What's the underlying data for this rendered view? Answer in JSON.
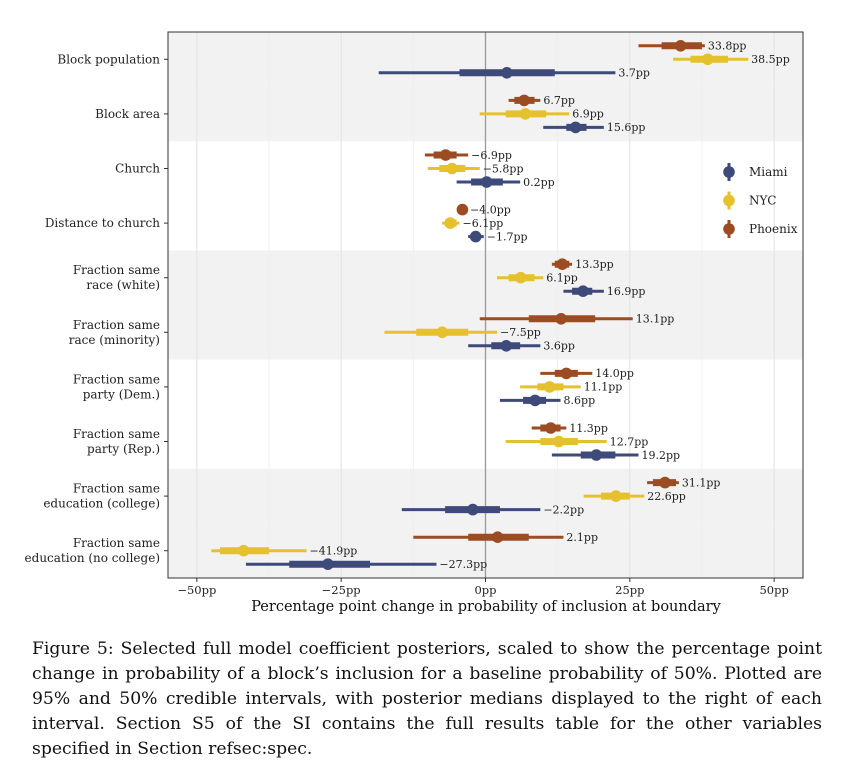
{
  "chart_data": {
    "type": "interval",
    "xlabel": "Percentage point change in probability of inclusion at boundary",
    "xlim": [
      -55,
      55
    ],
    "xticks": [
      {
        "value": -50,
        "label": "−50pp"
      },
      {
        "value": -25,
        "label": "−25pp"
      },
      {
        "value": 0,
        "label": "0pp"
      },
      {
        "value": 25,
        "label": "25pp"
      },
      {
        "value": 50,
        "label": "50pp"
      }
    ],
    "grid": true,
    "legend": {
      "position": "right",
      "entries": [
        "Miami",
        "NYC",
        "Phoenix"
      ]
    },
    "colors": {
      "Miami": "#3e4a7a",
      "NYC": "#e6c12e",
      "Phoenix": "#9c4c22",
      "band": "#f2f2f2",
      "zero_line": "#999999"
    },
    "variables": [
      {
        "label": [
          "Block population"
        ],
        "shaded": true,
        "estimates": [
          {
            "series": "Phoenix",
            "median": 33.8,
            "ci50": [
              30.5,
              37.5
            ],
            "ci95": [
              26.5,
              38.0
            ],
            "label": "33.8pp"
          },
          {
            "series": "NYC",
            "median": 38.5,
            "ci50": [
              35.5,
              42.0
            ],
            "ci95": [
              32.5,
              45.5
            ],
            "label": "38.5pp"
          },
          {
            "series": "Miami",
            "median": 3.7,
            "ci50": [
              -4.5,
              12.0
            ],
            "ci95": [
              -18.5,
              22.5
            ],
            "label": "3.7pp"
          }
        ]
      },
      {
        "label": [
          "Block area"
        ],
        "shaded": true,
        "estimates": [
          {
            "series": "Phoenix",
            "median": 6.7,
            "ci50": [
              5.0,
              8.5
            ],
            "ci95": [
              4.0,
              9.5
            ],
            "label": "6.7pp"
          },
          {
            "series": "NYC",
            "median": 6.9,
            "ci50": [
              3.5,
              10.5
            ],
            "ci95": [
              -1.0,
              14.5
            ],
            "label": "6.9pp"
          },
          {
            "series": "Miami",
            "median": 15.6,
            "ci50": [
              14.0,
              17.5
            ],
            "ci95": [
              10.0,
              20.5
            ],
            "label": "15.6pp"
          }
        ]
      },
      {
        "label": [
          "Church"
        ],
        "shaded": false,
        "estimates": [
          {
            "series": "Phoenix",
            "median": -6.9,
            "ci50": [
              -9.0,
              -5.0
            ],
            "ci95": [
              -10.5,
              -3.0
            ],
            "label": "−6.9pp"
          },
          {
            "series": "NYC",
            "median": -5.8,
            "ci50": [
              -8.0,
              -3.5
            ],
            "ci95": [
              -10.0,
              -1.0
            ],
            "label": "−5.8pp"
          },
          {
            "series": "Miami",
            "median": 0.2,
            "ci50": [
              -2.5,
              3.0
            ],
            "ci95": [
              -5.0,
              6.0
            ],
            "label": "0.2pp"
          }
        ]
      },
      {
        "label": [
          "Distance to church"
        ],
        "shaded": false,
        "estimates": [
          {
            "series": "Phoenix",
            "median": -4.0,
            "ci50": [
              -4.5,
              -3.5
            ],
            "ci95": [
              -4.8,
              -3.2
            ],
            "label": "−4.0pp"
          },
          {
            "series": "NYC",
            "median": -6.1,
            "ci50": [
              -7.0,
              -5.0
            ],
            "ci95": [
              -7.5,
              -4.5
            ],
            "label": "−6.1pp"
          },
          {
            "series": "Miami",
            "median": -1.7,
            "ci50": [
              -2.5,
              -1.0
            ],
            "ci95": [
              -3.0,
              -0.3
            ],
            "label": "−1.7pp"
          }
        ]
      },
      {
        "label": [
          "Fraction same",
          "race (white)"
        ],
        "shaded": true,
        "estimates": [
          {
            "series": "Phoenix",
            "median": 13.3,
            "ci50": [
              12.0,
              14.5
            ],
            "ci95": [
              11.5,
              15.0
            ],
            "label": "13.3pp"
          },
          {
            "series": "NYC",
            "median": 6.1,
            "ci50": [
              4.0,
              8.5
            ],
            "ci95": [
              2.0,
              10.0
            ],
            "label": "6.1pp"
          },
          {
            "series": "Miami",
            "median": 16.9,
            "ci50": [
              15.0,
              18.5
            ],
            "ci95": [
              13.5,
              20.5
            ],
            "label": "16.9pp"
          }
        ]
      },
      {
        "label": [
          "Fraction same",
          "race (minority)"
        ],
        "shaded": true,
        "estimates": [
          {
            "series": "Phoenix",
            "median": 13.1,
            "ci50": [
              7.5,
              19.0
            ],
            "ci95": [
              -1.0,
              25.5
            ],
            "label": "13.1pp"
          },
          {
            "series": "NYC",
            "median": -7.5,
            "ci50": [
              -12.0,
              -3.0
            ],
            "ci95": [
              -17.5,
              2.0
            ],
            "label": "−7.5pp"
          },
          {
            "series": "Miami",
            "median": 3.6,
            "ci50": [
              1.0,
              6.0
            ],
            "ci95": [
              -3.0,
              9.5
            ],
            "label": "3.6pp"
          }
        ]
      },
      {
        "label": [
          "Fraction same",
          "party (Dem.)"
        ],
        "shaded": false,
        "estimates": [
          {
            "series": "Phoenix",
            "median": 14.0,
            "ci50": [
              12.0,
              16.0
            ],
            "ci95": [
              9.5,
              18.5
            ],
            "label": "14.0pp"
          },
          {
            "series": "NYC",
            "median": 11.1,
            "ci50": [
              9.0,
              13.5
            ],
            "ci95": [
              6.0,
              16.5
            ],
            "label": "11.1pp"
          },
          {
            "series": "Miami",
            "median": 8.6,
            "ci50": [
              6.5,
              10.5
            ],
            "ci95": [
              2.5,
              13.0
            ],
            "label": "8.6pp"
          }
        ]
      },
      {
        "label": [
          "Fraction same",
          "party (Rep.)"
        ],
        "shaded": false,
        "estimates": [
          {
            "series": "Phoenix",
            "median": 11.3,
            "ci50": [
              9.5,
              13.0
            ],
            "ci95": [
              8.0,
              14.0
            ],
            "label": "11.3pp"
          },
          {
            "series": "NYC",
            "median": 12.7,
            "ci50": [
              9.5,
              16.0
            ],
            "ci95": [
              3.5,
              21.0
            ],
            "label": "12.7pp"
          },
          {
            "series": "Miami",
            "median": 19.2,
            "ci50": [
              16.5,
              22.5
            ],
            "ci95": [
              11.5,
              26.5
            ],
            "label": "19.2pp"
          }
        ]
      },
      {
        "label": [
          "Fraction same",
          "education (college)"
        ],
        "shaded": true,
        "estimates": [
          {
            "series": "Phoenix",
            "median": 31.1,
            "ci50": [
              29.0,
              33.0
            ],
            "ci95": [
              28.0,
              33.5
            ],
            "label": "31.1pp"
          },
          {
            "series": "NYC",
            "median": 22.6,
            "ci50": [
              20.0,
              25.0
            ],
            "ci95": [
              17.0,
              27.5
            ],
            "label": "22.6pp"
          },
          {
            "series": "Miami",
            "median": -2.2,
            "ci50": [
              -7.0,
              2.5
            ],
            "ci95": [
              -14.5,
              9.5
            ],
            "label": "−2.2pp"
          }
        ]
      },
      {
        "label": [
          "Fraction same",
          "education (no college)"
        ],
        "shaded": true,
        "estimates": [
          {
            "series": "Phoenix",
            "median": 2.1,
            "ci50": [
              -3.0,
              7.5
            ],
            "ci95": [
              -12.5,
              13.5
            ],
            "label": "2.1pp"
          },
          {
            "series": "NYC",
            "median": -41.9,
            "ci50": [
              -46.0,
              -37.5
            ],
            "ci95": [
              -47.5,
              -31.0
            ],
            "label": "−41.9pp"
          },
          {
            "series": "Miami",
            "median": -27.3,
            "ci50": [
              -34.0,
              -20.0
            ],
            "ci95": [
              -41.5,
              -8.5
            ],
            "label": "−27.3pp"
          }
        ]
      }
    ]
  },
  "caption": "Figure 5: Selected full model coefficient posteriors, scaled to show the percentage point change in probability of a block’s inclusion for a baseline probability of 50%. Plotted are 95% and 50% credible intervals, with posterior medians displayed to the right of each interval. Section S5 of the SI contains the full results table for the other variables specified in Section refsec:spec."
}
